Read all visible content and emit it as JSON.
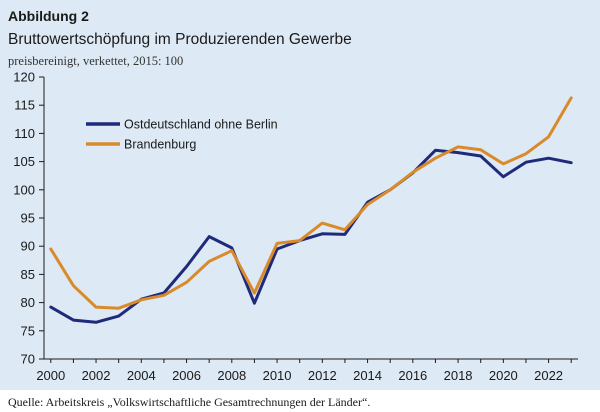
{
  "figure": {
    "label": "Abbildung 2",
    "title": "Bruttowertschöpfung im Produzierenden Gewerbe",
    "subtitle": "preisbereinigt, verkettet, 2015: 100",
    "source": "Quelle: Arbeitskreis „Volkswirtschaftliche Gesamtrechnungen der Länder“."
  },
  "colors": {
    "background": "#dde9f5",
    "ostdeutschland": "#1f2a7a",
    "brandenburg": "#d98a2b"
  },
  "chart_data": {
    "type": "line",
    "title": "Bruttowertschöpfung im Produzierenden Gewerbe",
    "xlabel": "",
    "ylabel": "",
    "x": [
      2000,
      2001,
      2002,
      2003,
      2004,
      2005,
      2006,
      2007,
      2008,
      2009,
      2010,
      2011,
      2012,
      2013,
      2014,
      2015,
      2016,
      2017,
      2018,
      2019,
      2020,
      2021,
      2022,
      2023
    ],
    "xticks": [
      "2000",
      "2002",
      "2004",
      "2006",
      "2008",
      "2010",
      "2012",
      "2014",
      "2016",
      "2018",
      "2020",
      "2022"
    ],
    "yticks": [
      "70",
      "75",
      "80",
      "85",
      "90",
      "95",
      "100",
      "105",
      "110",
      "115",
      "120"
    ],
    "xlim": [
      1999.7,
      2023.3
    ],
    "ylim": [
      70,
      120
    ],
    "grid": false,
    "legend_position": "top-left",
    "series": [
      {
        "name": "Ostdeutschland ohne Berlin",
        "color": "#1f2a7a",
        "values": [
          79.2,
          76.9,
          76.5,
          77.6,
          80.6,
          81.7,
          86.4,
          91.7,
          89.7,
          79.9,
          89.5,
          91.0,
          92.2,
          92.1,
          97.8,
          100.0,
          103.0,
          107.0,
          106.6,
          106.0,
          102.3,
          104.9,
          105.6,
          104.8
        ]
      },
      {
        "name": "Brandenburg",
        "color": "#d98a2b",
        "values": [
          89.5,
          83.0,
          79.2,
          79.0,
          80.5,
          81.3,
          83.6,
          87.3,
          89.2,
          81.7,
          90.5,
          91.0,
          94.1,
          92.9,
          97.4,
          100.0,
          103.1,
          105.6,
          107.6,
          107.1,
          104.6,
          106.4,
          109.4,
          116.3
        ]
      }
    ]
  }
}
